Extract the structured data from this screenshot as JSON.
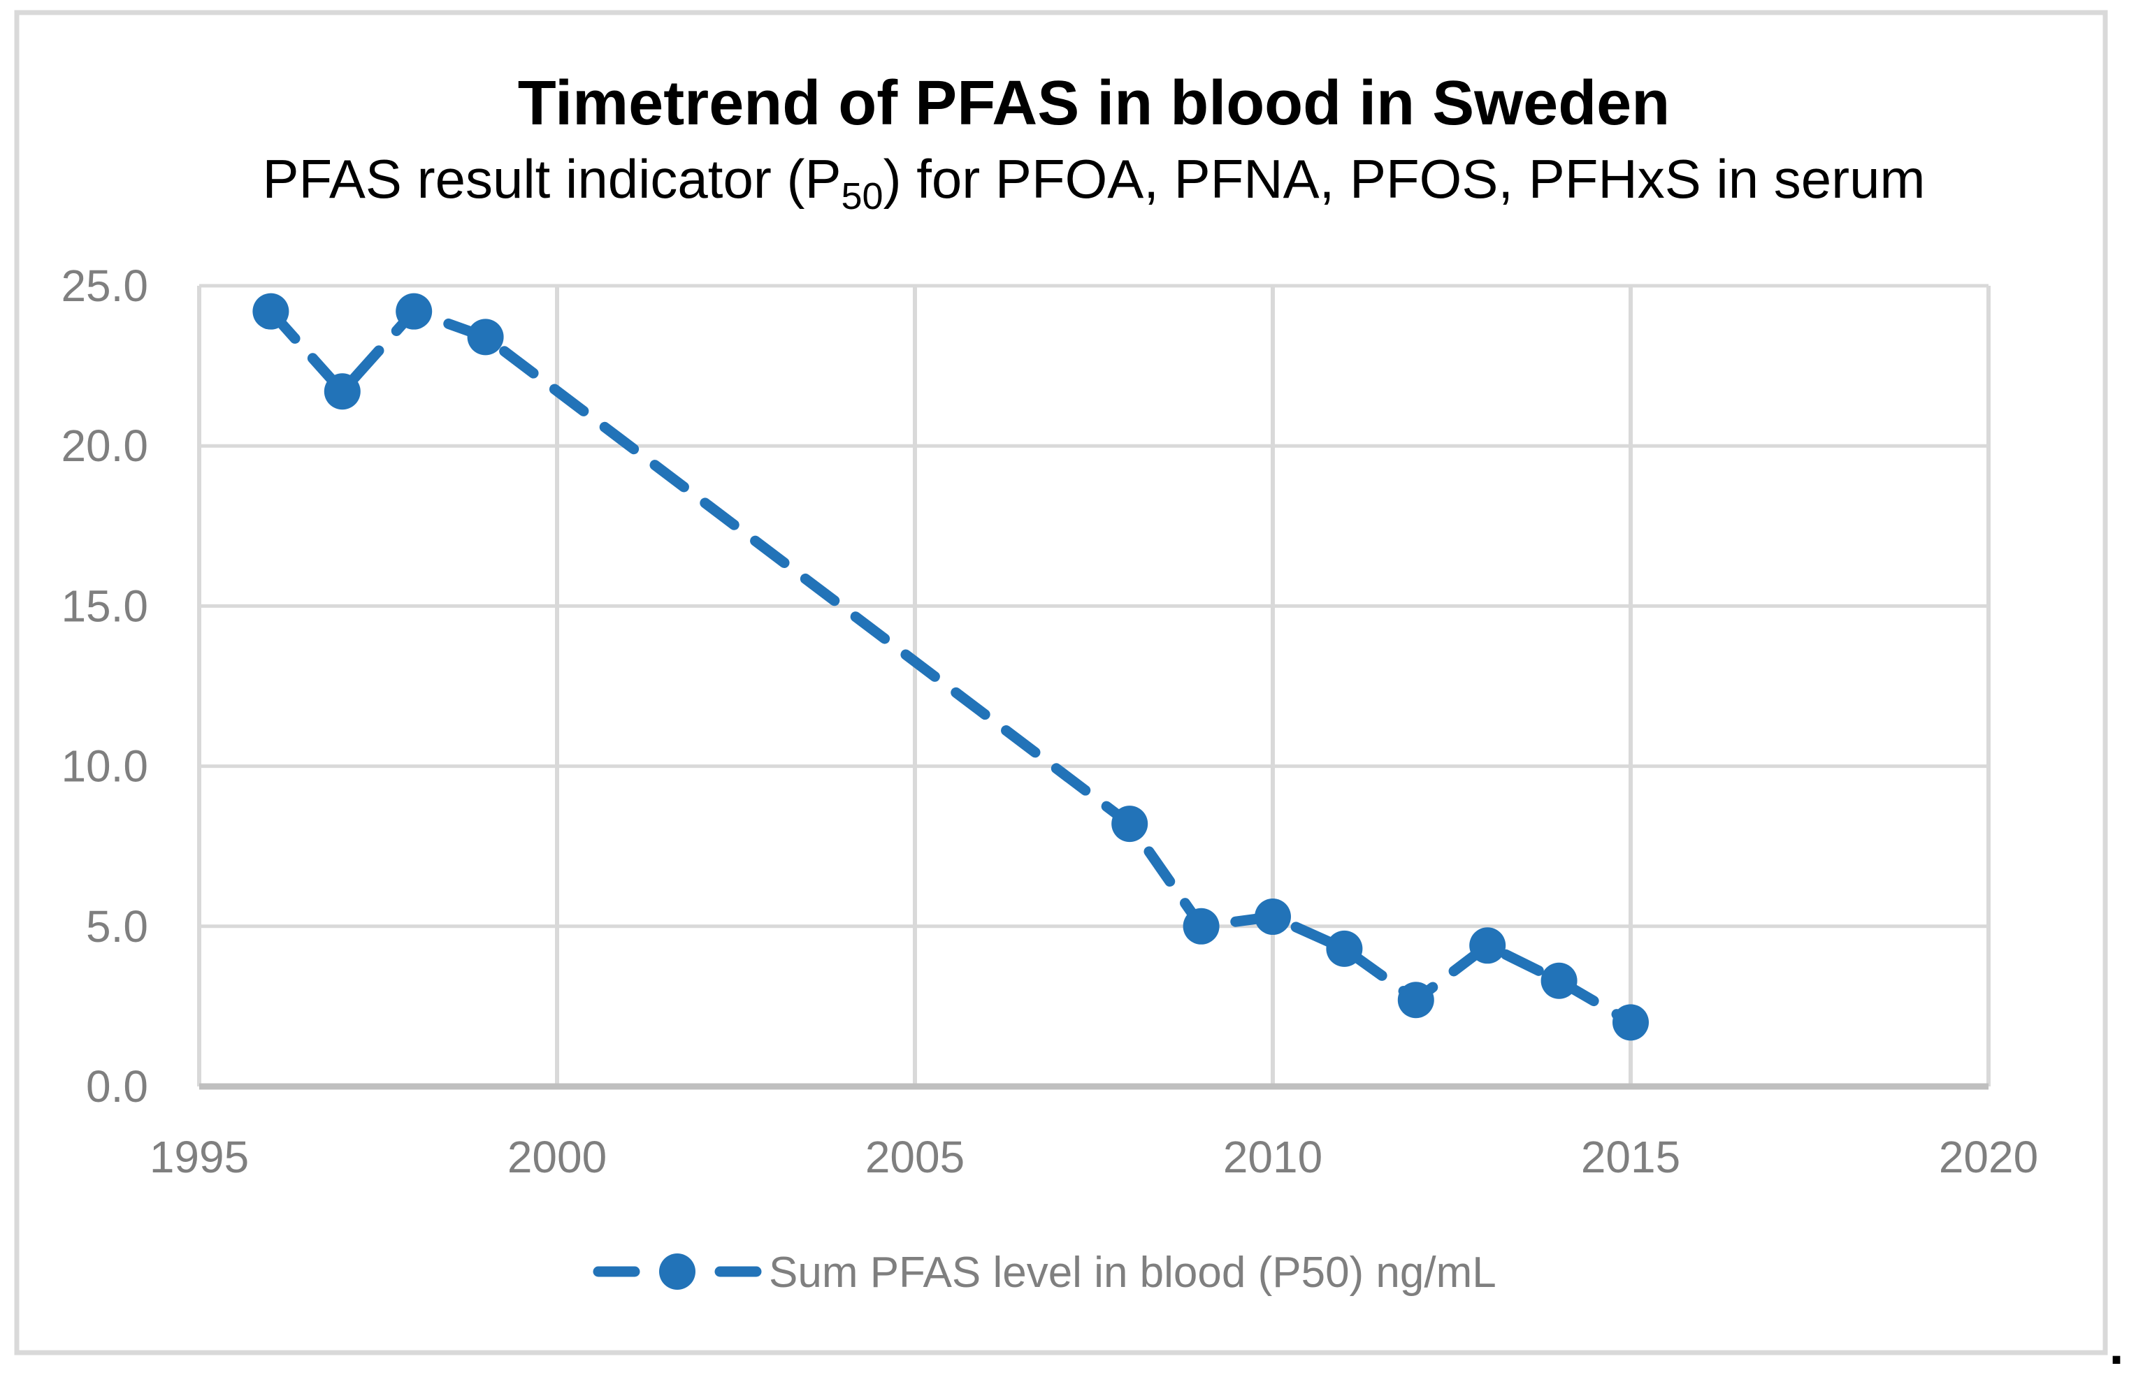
{
  "title": "Timetrend of PFAS in blood in Sweden",
  "subtitle": {
    "pre": "PFAS result indicator (P",
    "sub": "50",
    "post": ") for PFOA, PFNA, PFOS, PFHxS in serum"
  },
  "legend": {
    "label": "Sum PFAS level in blood (P50) ng/mL"
  },
  "trailing_period": ".",
  "colors": {
    "series": "#2273B8",
    "gridline": "#D9D9D9",
    "axis_line": "#BFBFBF",
    "frame": "#D9D9D9",
    "tick_label": "#7F7F7F",
    "legend_label": "#7F7F7F",
    "title_text": "#000000",
    "background": "#FFFFFF"
  },
  "chart_data": {
    "type": "line",
    "title": "Timetrend of PFAS in blood in Sweden",
    "subtitle": "PFAS result indicator (P50) for PFOA, PFNA, PFOS, PFHxS in serum",
    "series": [
      {
        "name": "Sum PFAS level in blood (P50) ng/mL",
        "x": [
          1996,
          1997,
          1998,
          1999,
          2008,
          2009,
          2010,
          2011,
          2012,
          2013,
          2014,
          2015
        ],
        "y": [
          24.2,
          21.7,
          24.2,
          23.4,
          8.2,
          5.0,
          5.3,
          4.3,
          2.7,
          4.4,
          3.3,
          2.0
        ]
      }
    ],
    "xlabel": "",
    "ylabel": "",
    "xlim": [
      1995,
      2020
    ],
    "ylim": [
      0,
      25
    ],
    "x_ticks": [
      1995,
      2000,
      2005,
      2010,
      2015,
      2020
    ],
    "y_ticks": [
      0,
      5,
      10,
      15,
      20,
      25
    ],
    "y_tick_decimals": 1,
    "grid": true,
    "line_style": "dashed",
    "marker": "circle",
    "legend_position": "bottom-center"
  }
}
